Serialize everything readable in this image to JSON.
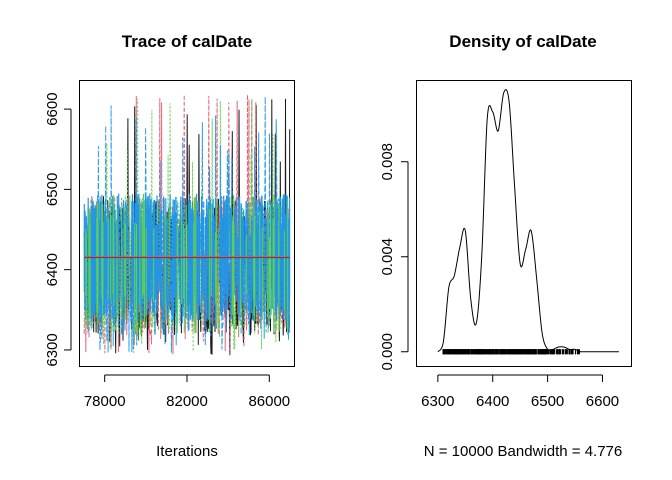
{
  "chart_data": [
    {
      "type": "line",
      "title": "Trace of calDate",
      "xlabel": "Iterations",
      "ylabel": "",
      "xlim": [
        76800,
        87200
      ],
      "ylim": [
        6280,
        6635
      ],
      "x_ticks": [
        78000,
        82000,
        86000
      ],
      "y_ticks": [
        6300,
        6400,
        6500,
        6600
      ],
      "x_range": [
        77000,
        87000
      ],
      "band_core": [
        6318,
        6492
      ],
      "band_extreme": [
        6292,
        6618
      ],
      "trend_level": 6416,
      "series": [
        {
          "color": "#000000"
        },
        {
          "color": "#DF536B"
        },
        {
          "color": "#61D04F"
        },
        {
          "color": "#2297E6"
        }
      ]
    },
    {
      "type": "area",
      "title": "Density of calDate",
      "xlabel": "N = 10000   Bandwidth = 4.776",
      "ylabel": "",
      "xlim": [
        6262,
        6652
      ],
      "ylim": [
        -0.0006,
        0.0114
      ],
      "x_ticks": [
        6300,
        6400,
        6500,
        6600
      ],
      "y_ticks": [
        0.0,
        0.004,
        0.008
      ],
      "y_tick_labels": [
        "0.000",
        "0.004",
        "0.008"
      ],
      "x": [
        6300,
        6310,
        6320,
        6330,
        6340,
        6350,
        6360,
        6370,
        6380,
        6390,
        6400,
        6410,
        6420,
        6430,
        6440,
        6450,
        6460,
        6470,
        6480,
        6490,
        6500,
        6510,
        6520,
        6530,
        6540,
        6550,
        6560,
        6570,
        6580,
        6600,
        6630
      ],
      "y": [
        0.0,
        0.0004,
        0.0027,
        0.0032,
        0.0044,
        0.0051,
        0.0022,
        0.0012,
        0.004,
        0.0098,
        0.0101,
        0.0093,
        0.0109,
        0.0105,
        0.0069,
        0.0037,
        0.0043,
        0.0051,
        0.0031,
        0.0008,
        0.0001,
        0.0001,
        0.0002,
        0.0002,
        0.0001,
        0.0001,
        0.0,
        0.0,
        0.0,
        0.0,
        0.0
      ],
      "rug_range": [
        6305,
        6560
      ]
    }
  ]
}
